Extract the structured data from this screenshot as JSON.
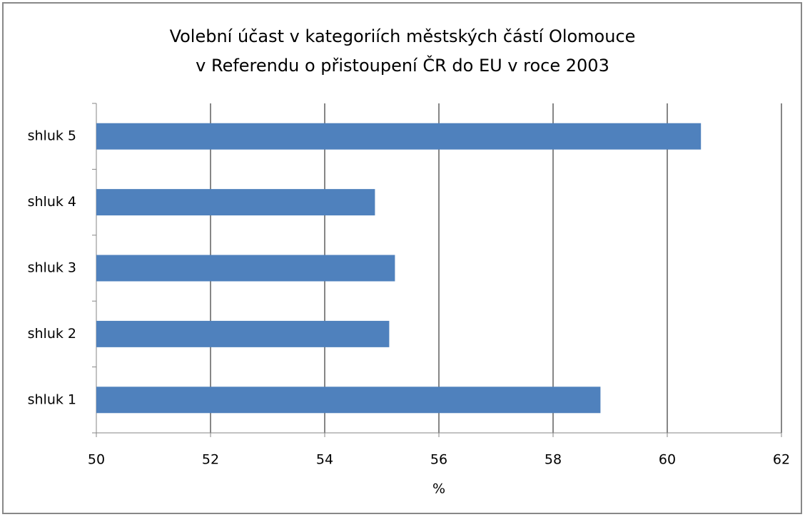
{
  "chart_data": {
    "type": "bar",
    "orientation": "horizontal",
    "title": [
      "Volební účast v kategoriích městských částí Olomouce",
      "v Referendu o přistoupení ČR do EU v roce 2003"
    ],
    "categories": [
      "shluk 1",
      "shluk 2",
      "shluk 3",
      "shluk 4",
      "shluk 5"
    ],
    "values": [
      58.83,
      55.13,
      55.23,
      54.88,
      60.59
    ],
    "color": "#4f81bd",
    "xlabel": "%",
    "xlim": [
      50,
      62
    ],
    "xticks": [
      50,
      52,
      54,
      56,
      58,
      60,
      62
    ],
    "grid": true
  }
}
